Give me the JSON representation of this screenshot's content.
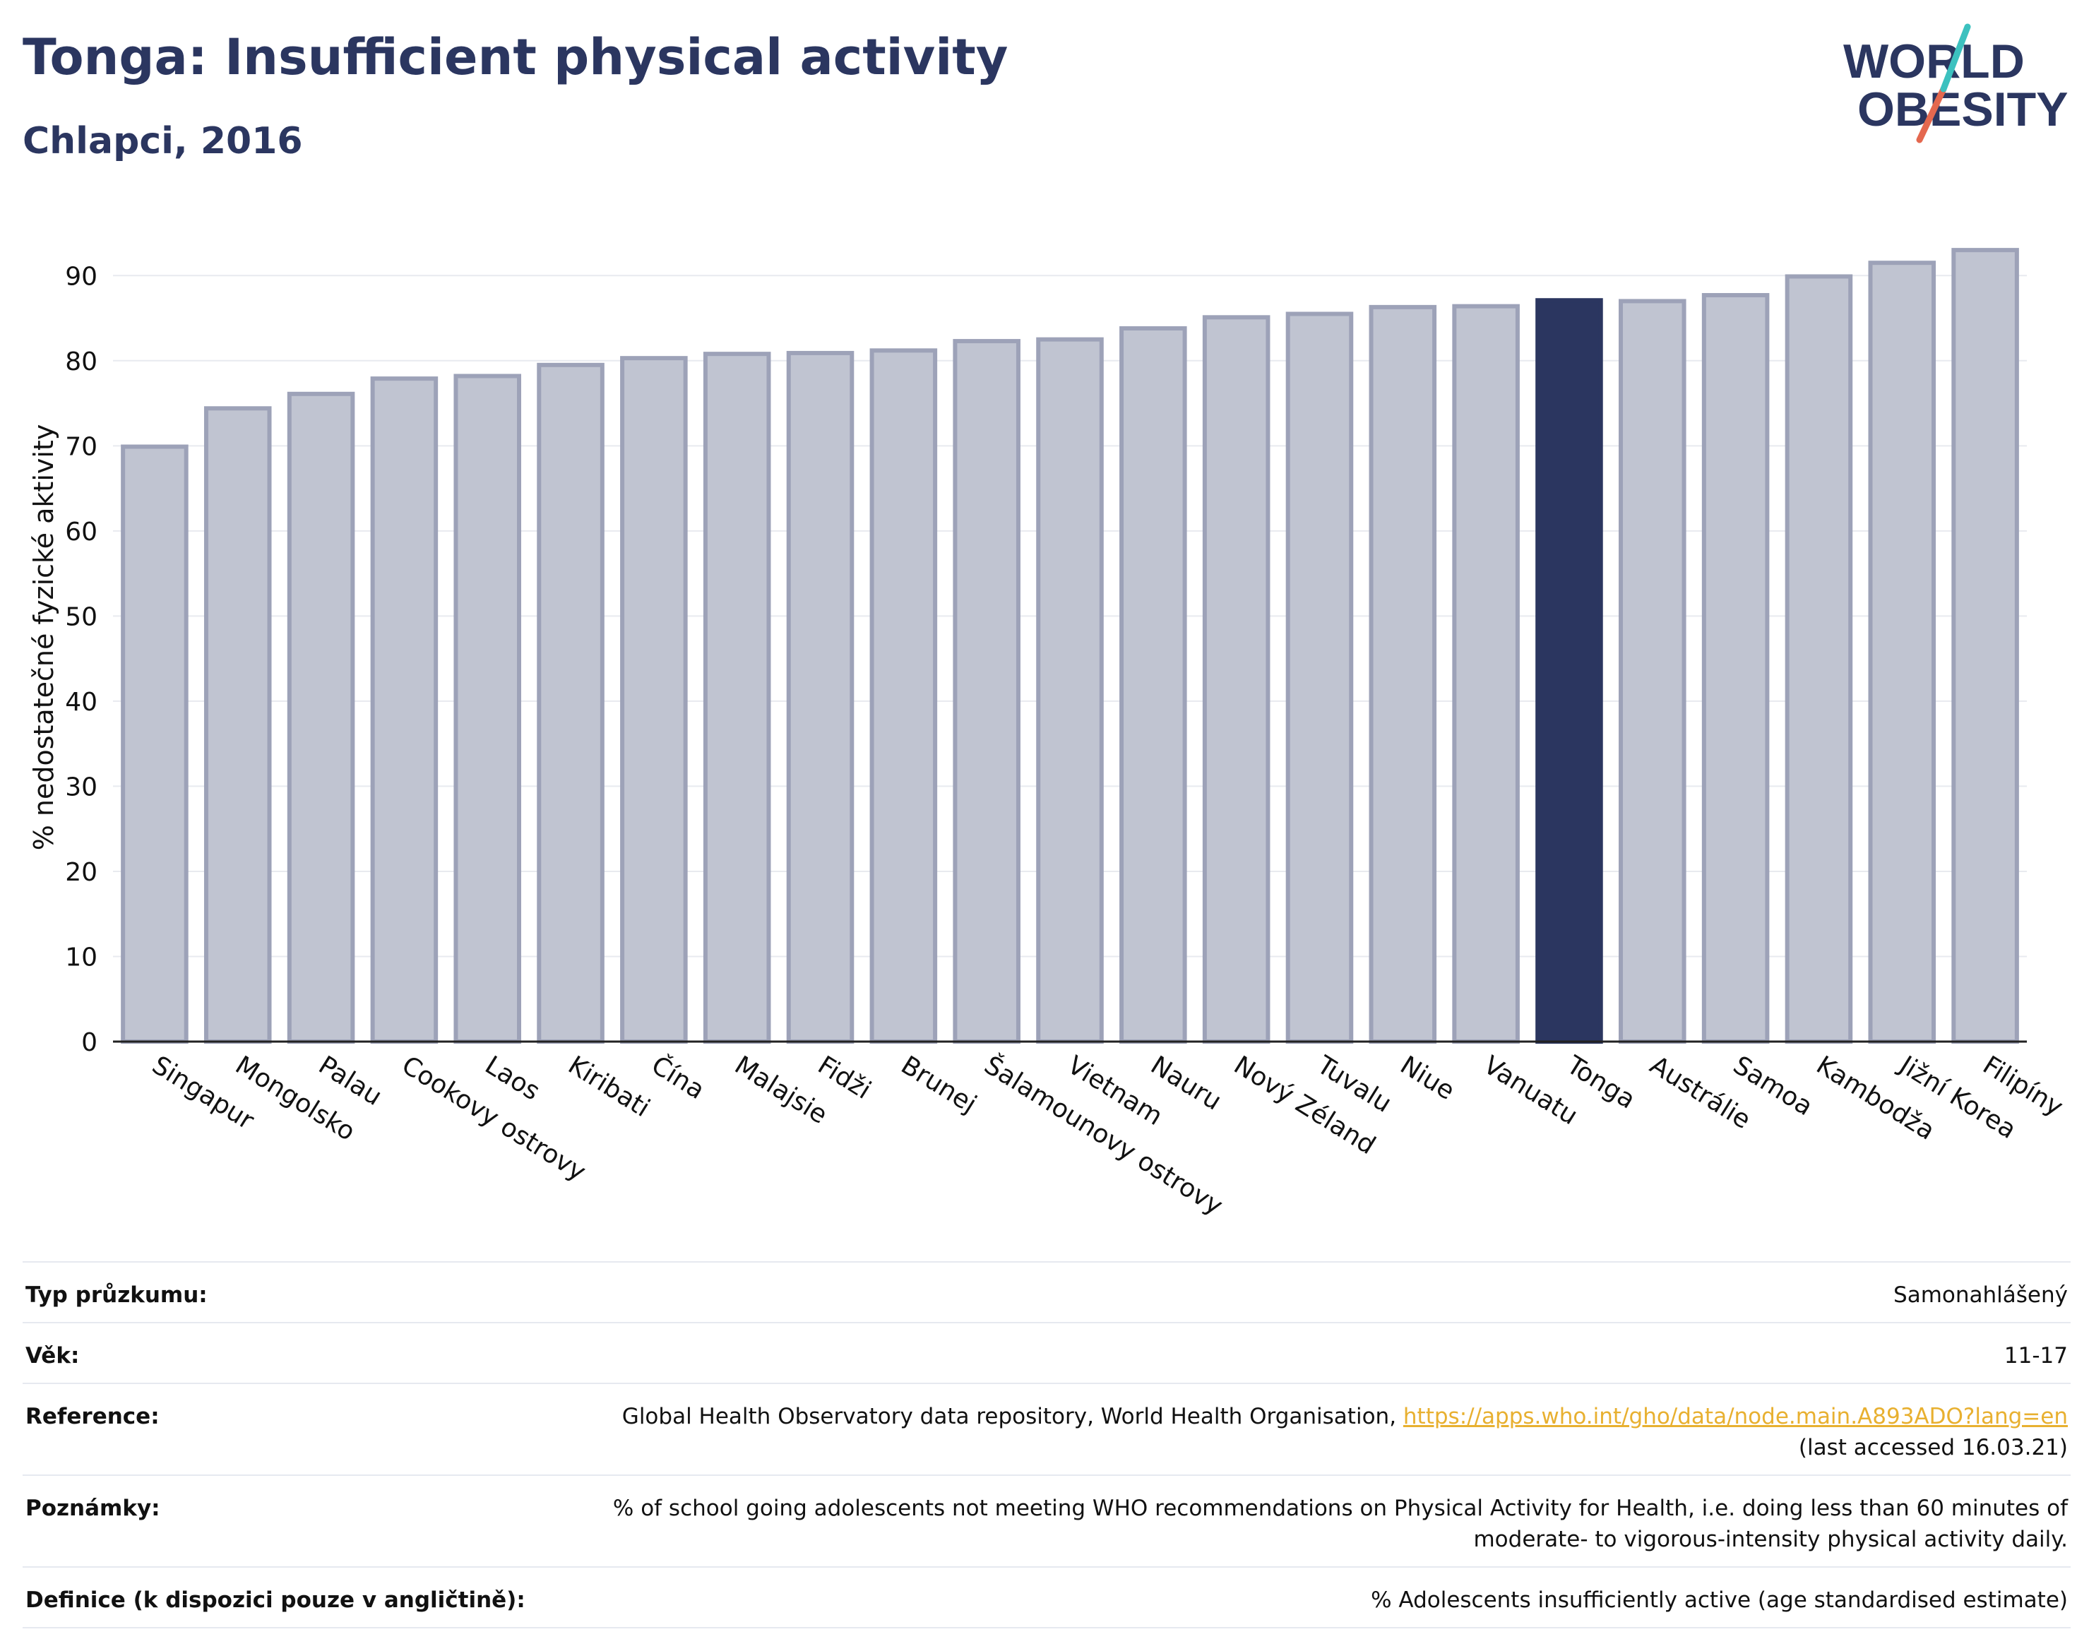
{
  "title": "Tonga: Insufficient physical activity",
  "subtitle": "Chlapci, 2016",
  "logo": {
    "line1": "WORLD",
    "line2": "OBESITY",
    "slash_colors": [
      "#3cc1bf",
      "#e4684f"
    ]
  },
  "colors": {
    "title": "#2b3660",
    "bar": "#c0c4d1",
    "bar_border": "#9da2b8",
    "highlight_bar": "#2b3660",
    "link": "#e8b030"
  },
  "chart_data": {
    "type": "bar",
    "categories": [
      "Singapur",
      "Mongolsko",
      "Palau",
      "Cookovy ostrovy",
      "Laos",
      "Kiribati",
      "Čína",
      "Malajsie",
      "Fidži",
      "Brunej",
      "Šalamounovy ostrovy",
      "Vietnam",
      "Nauru",
      "Nový Zéland",
      "Tuvalu",
      "Niue",
      "Vanuatu",
      "Tonga",
      "Austrálie",
      "Samoa",
      "Kambodža",
      "Jižní Korea",
      "Filipíny"
    ],
    "values": [
      69.9,
      74.4,
      76.1,
      77.9,
      78.2,
      79.5,
      80.3,
      80.8,
      80.9,
      81.2,
      82.3,
      82.5,
      83.8,
      85.1,
      85.5,
      86.3,
      86.4,
      87.1,
      87.0,
      87.7,
      89.9,
      91.5,
      93.0
    ],
    "highlight": "Tonga",
    "xlabel": "",
    "ylabel": "% nedostatečné fyzické aktivity",
    "ylim": [
      0,
      95
    ],
    "yticks": [
      0,
      10,
      20,
      30,
      40,
      50,
      60,
      70,
      80,
      90
    ],
    "grid": true
  },
  "meta": [
    {
      "label": "Typ průzkumu:",
      "value": "Samonahlášený"
    },
    {
      "label": "Věk:",
      "value": "11-17"
    },
    {
      "label": "Reference:",
      "value": "Global Health Observatory data repository, World Health Organisation, ",
      "link": "https://apps.who.int/gho/data/node.main.A893ADO?lang=en",
      "value2": "(last accessed 16.03.21)"
    },
    {
      "label": "Poznámky:",
      "value": "% of school going adolescents not meeting WHO recommendations on Physical Activity for Health, i.e. doing less than 60 minutes of",
      "value2": "moderate- to vigorous-intensity physical activity daily."
    },
    {
      "label": "Definice (k dispozici pouze v angličtině):",
      "value": "% Adolescents insufficiently active (age standardised estimate)"
    }
  ]
}
